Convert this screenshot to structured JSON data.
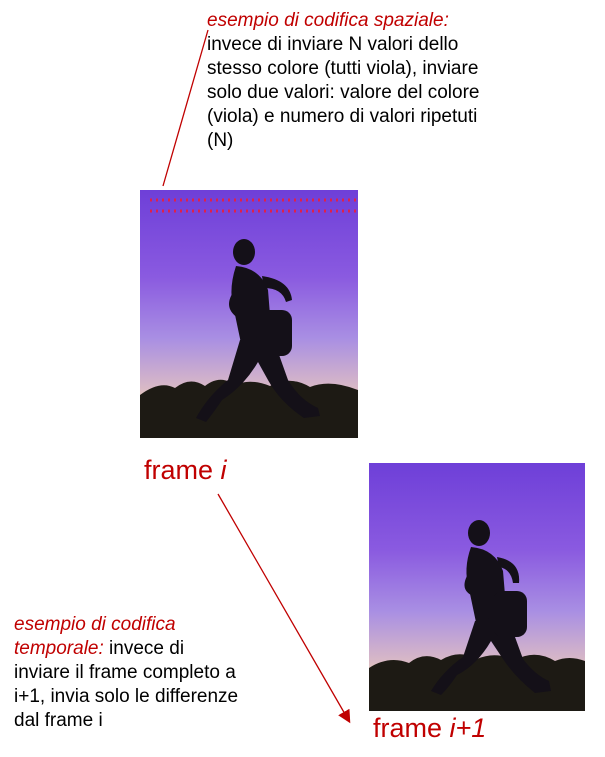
{
  "spatial": {
    "heading": "esempio di codifica spaziale:",
    "line1": "invece di inviare N valori dello",
    "line2": "stesso colore (tutti viola), inviare",
    "line3": "solo due valori: valore del colore",
    "line4": "(viola) e numero di valori ripetuti",
    "line5": "(N)"
  },
  "temporal": {
    "heading1": "esempio di codifica",
    "heading2": "temporale:",
    "line1_rest": " invece di",
    "line2": "inviare il frame completo a",
    "line3": "i+1, invia solo le differenze",
    "line4": "dal frame i"
  },
  "frames": {
    "i": {
      "prefix": "frame ",
      "index": "i"
    },
    "i1": {
      "prefix": "frame ",
      "index": "i+1"
    }
  },
  "colors": {
    "annotation_red": "#c00000",
    "dotted_line_red": "#e0204a",
    "sky_purple": "#6e3fd8"
  },
  "images": {
    "frame_i": "runner-silhouette-image",
    "frame_i1": "runner-silhouette-image"
  }
}
